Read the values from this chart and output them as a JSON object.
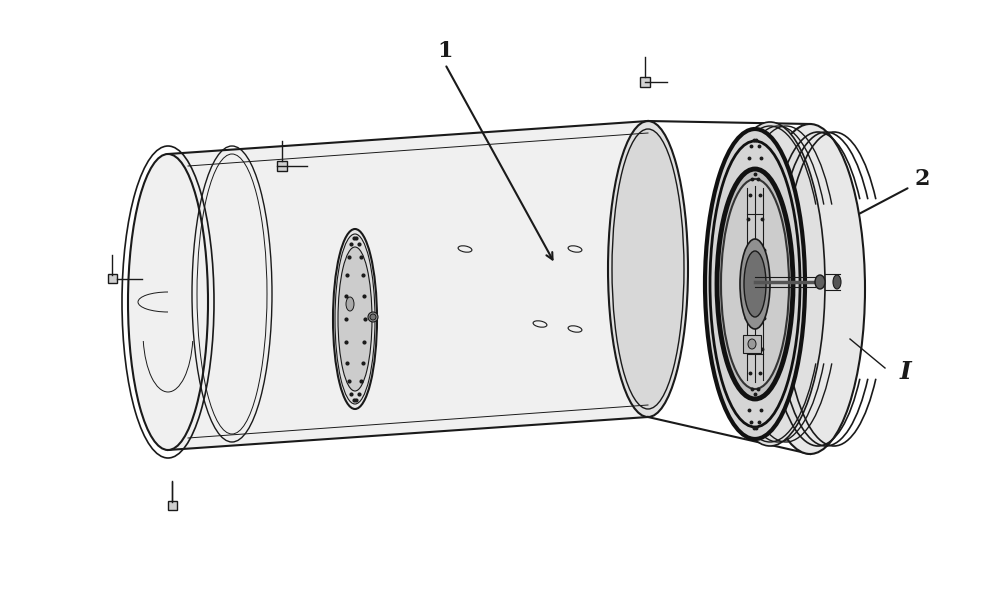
{
  "bg_color": "#ffffff",
  "line_color": "#1a1a1a",
  "fig_width": 10.0,
  "fig_height": 5.94,
  "label_1": "1",
  "label_2": "2",
  "label_I": "I"
}
